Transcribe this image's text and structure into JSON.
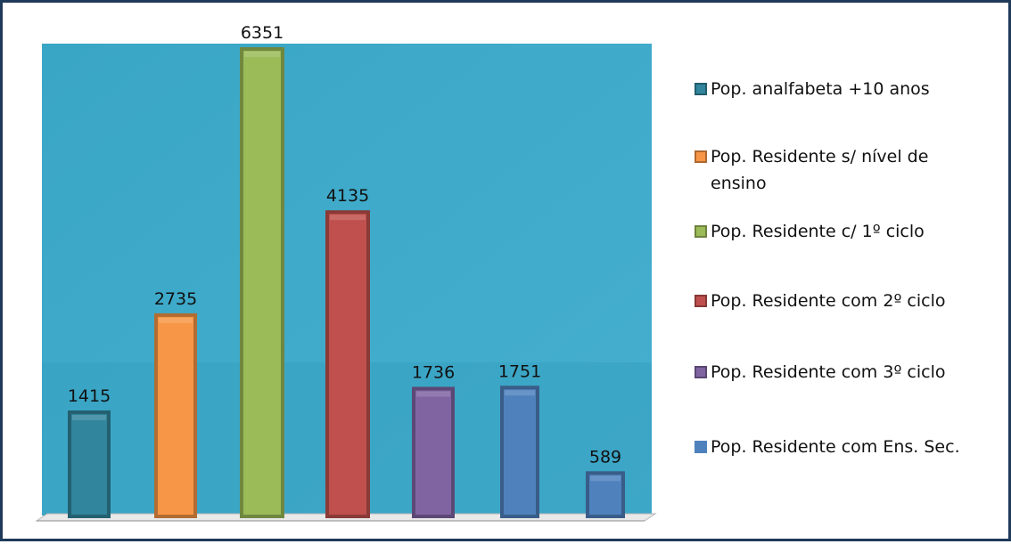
{
  "chart_data": {
    "type": "bar",
    "categories": [
      "Pop. analfabeta +10 anos",
      "Pop. Residente s/ nível de ensino",
      "Pop. Residente c/ 1º ciclo",
      "Pop. Residente com 2º ciclo",
      "Pop. Residente com 3º ciclo",
      "Pop. Residente com Ens. Sec.",
      ""
    ],
    "values": [
      1415,
      2735,
      6351,
      4135,
      1736,
      1751,
      589
    ],
    "data_labels": [
      "1415",
      "2735",
      "6351",
      "4135",
      "1736",
      "1751",
      "589"
    ],
    "colors": [
      "#31859c",
      "#f79646",
      "#9bbb59",
      "#c0504d",
      "#8064a2",
      "#4f81bd",
      "#4f81bd"
    ],
    "ylim": [
      0,
      6351
    ],
    "grid": false,
    "legend_position": "right",
    "plot_background": "#4bacc6"
  },
  "legend": {
    "items": [
      {
        "label": "Pop. analfabeta +10 anos",
        "color": "#31859c"
      },
      {
        "label": "Pop. Residente s/ nível de ensino",
        "color": "#f79646"
      },
      {
        "label": "Pop. Residente c/ 1º ciclo",
        "color": "#9bbb59"
      },
      {
        "label": "Pop. Residente com 2º ciclo",
        "color": "#c0504d"
      },
      {
        "label": "Pop. Residente com 3º ciclo",
        "color": "#8064a2"
      },
      {
        "label": "Pop. Residente com Ens. Sec.",
        "color": "#4f81bd"
      }
    ]
  }
}
